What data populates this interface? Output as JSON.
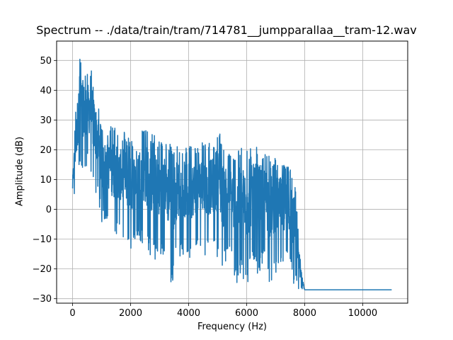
{
  "chart_data": {
    "type": "line",
    "title": "Spectrum -- ./data/train/tram/714781__jumpparallaa__tram-12.wav",
    "xlabel": "Frequency (Hz)",
    "ylabel": "Amplitude (dB)",
    "xlim": [
      -550,
      11550
    ],
    "ylim": [
      -31.5,
      56.5
    ],
    "xticks": [
      0,
      2000,
      4000,
      6000,
      8000,
      10000
    ],
    "xtick_labels": [
      "0",
      "2000",
      "4000",
      "6000",
      "8000",
      "10000"
    ],
    "yticks": [
      -30,
      -20,
      -10,
      0,
      10,
      20,
      30,
      40,
      50
    ],
    "ytick_labels": [
      "−30",
      "−20",
      "−10",
      "0",
      "10",
      "20",
      "30",
      "40",
      "50"
    ],
    "grid": true,
    "legend": "none",
    "series": [
      {
        "color": "#1f77b4",
        "envelope": {
          "x": [
            0,
            100,
            200,
            250,
            300,
            400,
            500,
            600,
            700,
            800,
            900,
            1000,
            1200,
            1400,
            1600,
            1800,
            2000,
            2200,
            2500,
            2700,
            3000,
            3200,
            3400,
            3600,
            3800,
            4000,
            4200,
            4400,
            4600,
            4800,
            5000,
            5200,
            5400,
            5600,
            5800,
            6000,
            6200,
            6400,
            6600,
            6800,
            7000,
            7200,
            7400,
            7500,
            7600,
            7700,
            7800,
            7900,
            8000,
            11000
          ],
          "upper": [
            12,
            33,
            45,
            53,
            50,
            48,
            46,
            49,
            44,
            40,
            36,
            28,
            27,
            29,
            25,
            26,
            23,
            26,
            28,
            26,
            24,
            23,
            22,
            22,
            22,
            22,
            21,
            22,
            23,
            22,
            28,
            22,
            21,
            20,
            21,
            20,
            21,
            22,
            20,
            18,
            17,
            16,
            15,
            14,
            12,
            8,
            -10,
            -22,
            -27,
            -27
          ],
          "lower": [
            2,
            5,
            12,
            12,
            14,
            10,
            15,
            12,
            8,
            4,
            2,
            -5,
            -3,
            -10,
            -8,
            -12,
            -14,
            -10,
            -12,
            -16,
            -18,
            -14,
            -27,
            -16,
            -16,
            -18,
            -14,
            -12,
            -16,
            -14,
            -16,
            -22,
            -12,
            -27,
            -22,
            -27,
            -18,
            -22,
            -18,
            -25,
            -22,
            -20,
            -18,
            -20,
            -27,
            -27,
            -27,
            -27,
            -27,
            -27
          ]
        }
      }
    ]
  }
}
